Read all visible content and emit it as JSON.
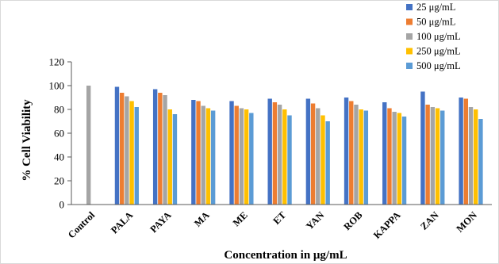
{
  "chart_data": {
    "type": "bar",
    "title": "",
    "xlabel": "Concentration in μg/mL",
    "ylabel": "% Cell Viability",
    "ylim": [
      0,
      120
    ],
    "yticks": [
      0,
      20,
      40,
      60,
      80,
      100,
      120
    ],
    "grid": false,
    "legend_position": "top-right",
    "categories": [
      "Control",
      "PALA",
      "PAYA",
      "MA",
      "ME",
      "ET",
      "YAN",
      "ROB",
      "KAPPA",
      "ZAN",
      "MON"
    ],
    "series": [
      {
        "name": "25 μg/mL",
        "color": "#4472C4",
        "values": [
          null,
          99,
          97,
          88,
          87,
          89,
          89,
          90,
          86,
          95,
          90
        ]
      },
      {
        "name": "50 μg/mL",
        "color": "#ED7D31",
        "values": [
          null,
          94,
          94,
          87,
          83,
          86,
          85,
          87,
          81,
          84,
          89
        ]
      },
      {
        "name": "100 μg/mL",
        "color": "#A5A5A5",
        "values": [
          100,
          91,
          92,
          83,
          81,
          84,
          81,
          84,
          78,
          82,
          82
        ]
      },
      {
        "name": "250 μg/mL",
        "color": "#FFC000",
        "values": [
          null,
          87,
          80,
          81,
          80,
          80,
          75,
          80,
          77,
          81,
          80
        ]
      },
      {
        "name": "500 μg/mL",
        "color": "#5B9BD5",
        "values": [
          null,
          82,
          76,
          79,
          77,
          75,
          70,
          79,
          74,
          79,
          72
        ]
      }
    ]
  }
}
